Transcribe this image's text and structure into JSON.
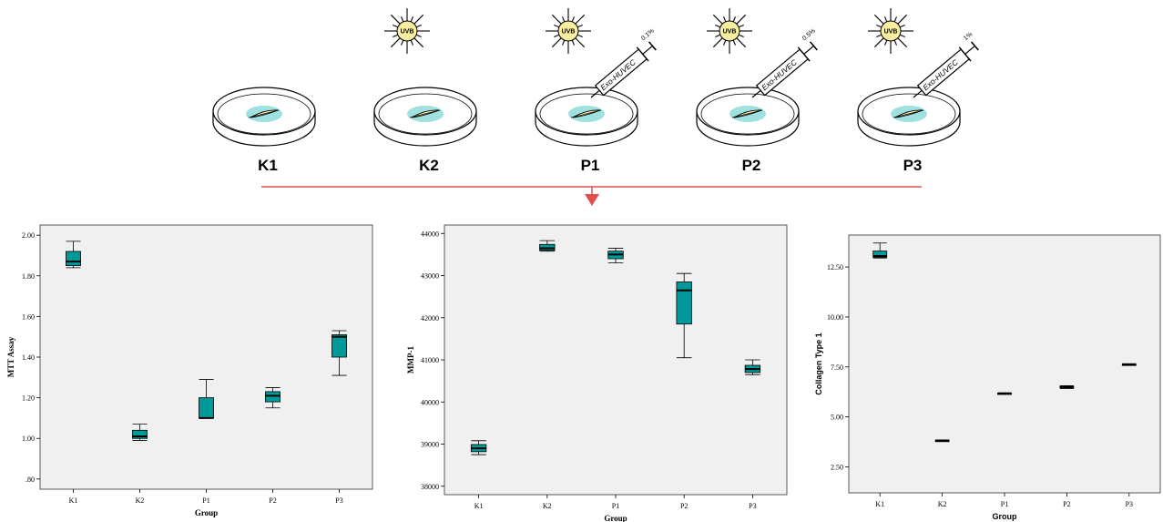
{
  "scene": {
    "groups": [
      {
        "label": "K1",
        "uvb": false,
        "syringe": null
      },
      {
        "label": "K2",
        "uvb": true,
        "syringe": null
      },
      {
        "label": "P1",
        "uvb": true,
        "syringe": {
          "text": "Exo-HUVEC",
          "dose": "0.1%"
        }
      },
      {
        "label": "P2",
        "uvb": true,
        "syringe": {
          "text": "Exo-HUVEC",
          "dose": "0.5%"
        }
      },
      {
        "label": "P3",
        "uvb": true,
        "syringe": {
          "text": "Exo-HUVEC",
          "dose": "1%"
        }
      }
    ],
    "uvb_label": "UVB",
    "colors": {
      "uvb_fill": "#f7ee9f",
      "specimen": "#9fe0e0",
      "arrow": "#e05050"
    }
  },
  "chart_data": [
    {
      "type": "boxplot",
      "xlabel": "Group",
      "ylabel": "MTT Assay",
      "categories": [
        "K1",
        "K2",
        "P1",
        "P2",
        "P3"
      ],
      "ylim": [
        0.75,
        2.05
      ],
      "yticks": [
        0.8,
        1.0,
        1.2,
        1.4,
        1.6,
        1.8,
        2.0
      ],
      "ytick_labels": [
        ".80",
        "1.00",
        "1.20",
        "1.40",
        "1.60",
        "1.80",
        "2.00"
      ],
      "boxes": [
        {
          "min": 1.84,
          "q1": 1.85,
          "median": 1.87,
          "q3": 1.92,
          "max": 1.97
        },
        {
          "min": 0.99,
          "q1": 1.0,
          "median": 1.01,
          "q3": 1.04,
          "max": 1.07
        },
        {
          "min": 1.1,
          "q1": 1.1,
          "median": 1.1,
          "q3": 1.2,
          "max": 1.29
        },
        {
          "min": 1.15,
          "q1": 1.18,
          "median": 1.21,
          "q3": 1.23,
          "max": 1.25
        },
        {
          "min": 1.31,
          "q1": 1.4,
          "median": 1.5,
          "q3": 1.51,
          "max": 1.53
        }
      ],
      "colors": {
        "box": "#009999",
        "panel": "#f0f0f0"
      }
    },
    {
      "type": "boxplot",
      "xlabel": "Group",
      "ylabel": "MMP-1",
      "categories": [
        "K1",
        "K2",
        "P1",
        "P2",
        "P3"
      ],
      "ylim": [
        37800,
        44200
      ],
      "yticks": [
        38000,
        39000,
        40000,
        41000,
        42000,
        43000,
        44000
      ],
      "ytick_labels": [
        "38000",
        "39000",
        "40000",
        "41000",
        "42000",
        "43000",
        "44000"
      ],
      "boxes": [
        {
          "min": 38750,
          "q1": 38820,
          "median": 38900,
          "q3": 38990,
          "max": 39080
        },
        {
          "min": 43580,
          "q1": 43600,
          "median": 43650,
          "q3": 43740,
          "max": 43830
        },
        {
          "min": 43300,
          "q1": 43400,
          "median": 43500,
          "q3": 43580,
          "max": 43650
        },
        {
          "min": 41050,
          "q1": 41850,
          "median": 42650,
          "q3": 42850,
          "max": 43050
        },
        {
          "min": 40650,
          "q1": 40700,
          "median": 40780,
          "q3": 40870,
          "max": 41000
        }
      ],
      "colors": {
        "box": "#009999",
        "panel": "#f0f0f0"
      }
    },
    {
      "type": "boxplot",
      "xlabel": "Group",
      "ylabel": "Collagen Type 1",
      "categories": [
        "K1",
        "K2",
        "P1",
        "P2",
        "P3"
      ],
      "ylim": [
        1.2,
        14.1
      ],
      "yticks": [
        2.5,
        5.0,
        7.5,
        10.0,
        12.5
      ],
      "ytick_labels": [
        "2.50",
        "5.00",
        "7.50",
        "10.00",
        "12.50"
      ],
      "boxes": [
        {
          "min": 12.95,
          "q1": 12.98,
          "median": 13.05,
          "q3": 13.3,
          "max": 13.7
        },
        {
          "min": 3.8,
          "q1": 3.8,
          "median": 3.82,
          "q3": 3.83,
          "max": 3.85
        },
        {
          "min": 6.15,
          "q1": 6.17,
          "median": 6.18,
          "q3": 6.19,
          "max": 6.2
        },
        {
          "min": 6.42,
          "q1": 6.45,
          "median": 6.5,
          "q3": 6.53,
          "max": 6.56
        },
        {
          "min": 7.6,
          "q1": 7.62,
          "median": 7.63,
          "q3": 7.64,
          "max": 7.66
        }
      ],
      "colors": {
        "box": "#009999",
        "panel": "#f0f0f0"
      }
    }
  ]
}
